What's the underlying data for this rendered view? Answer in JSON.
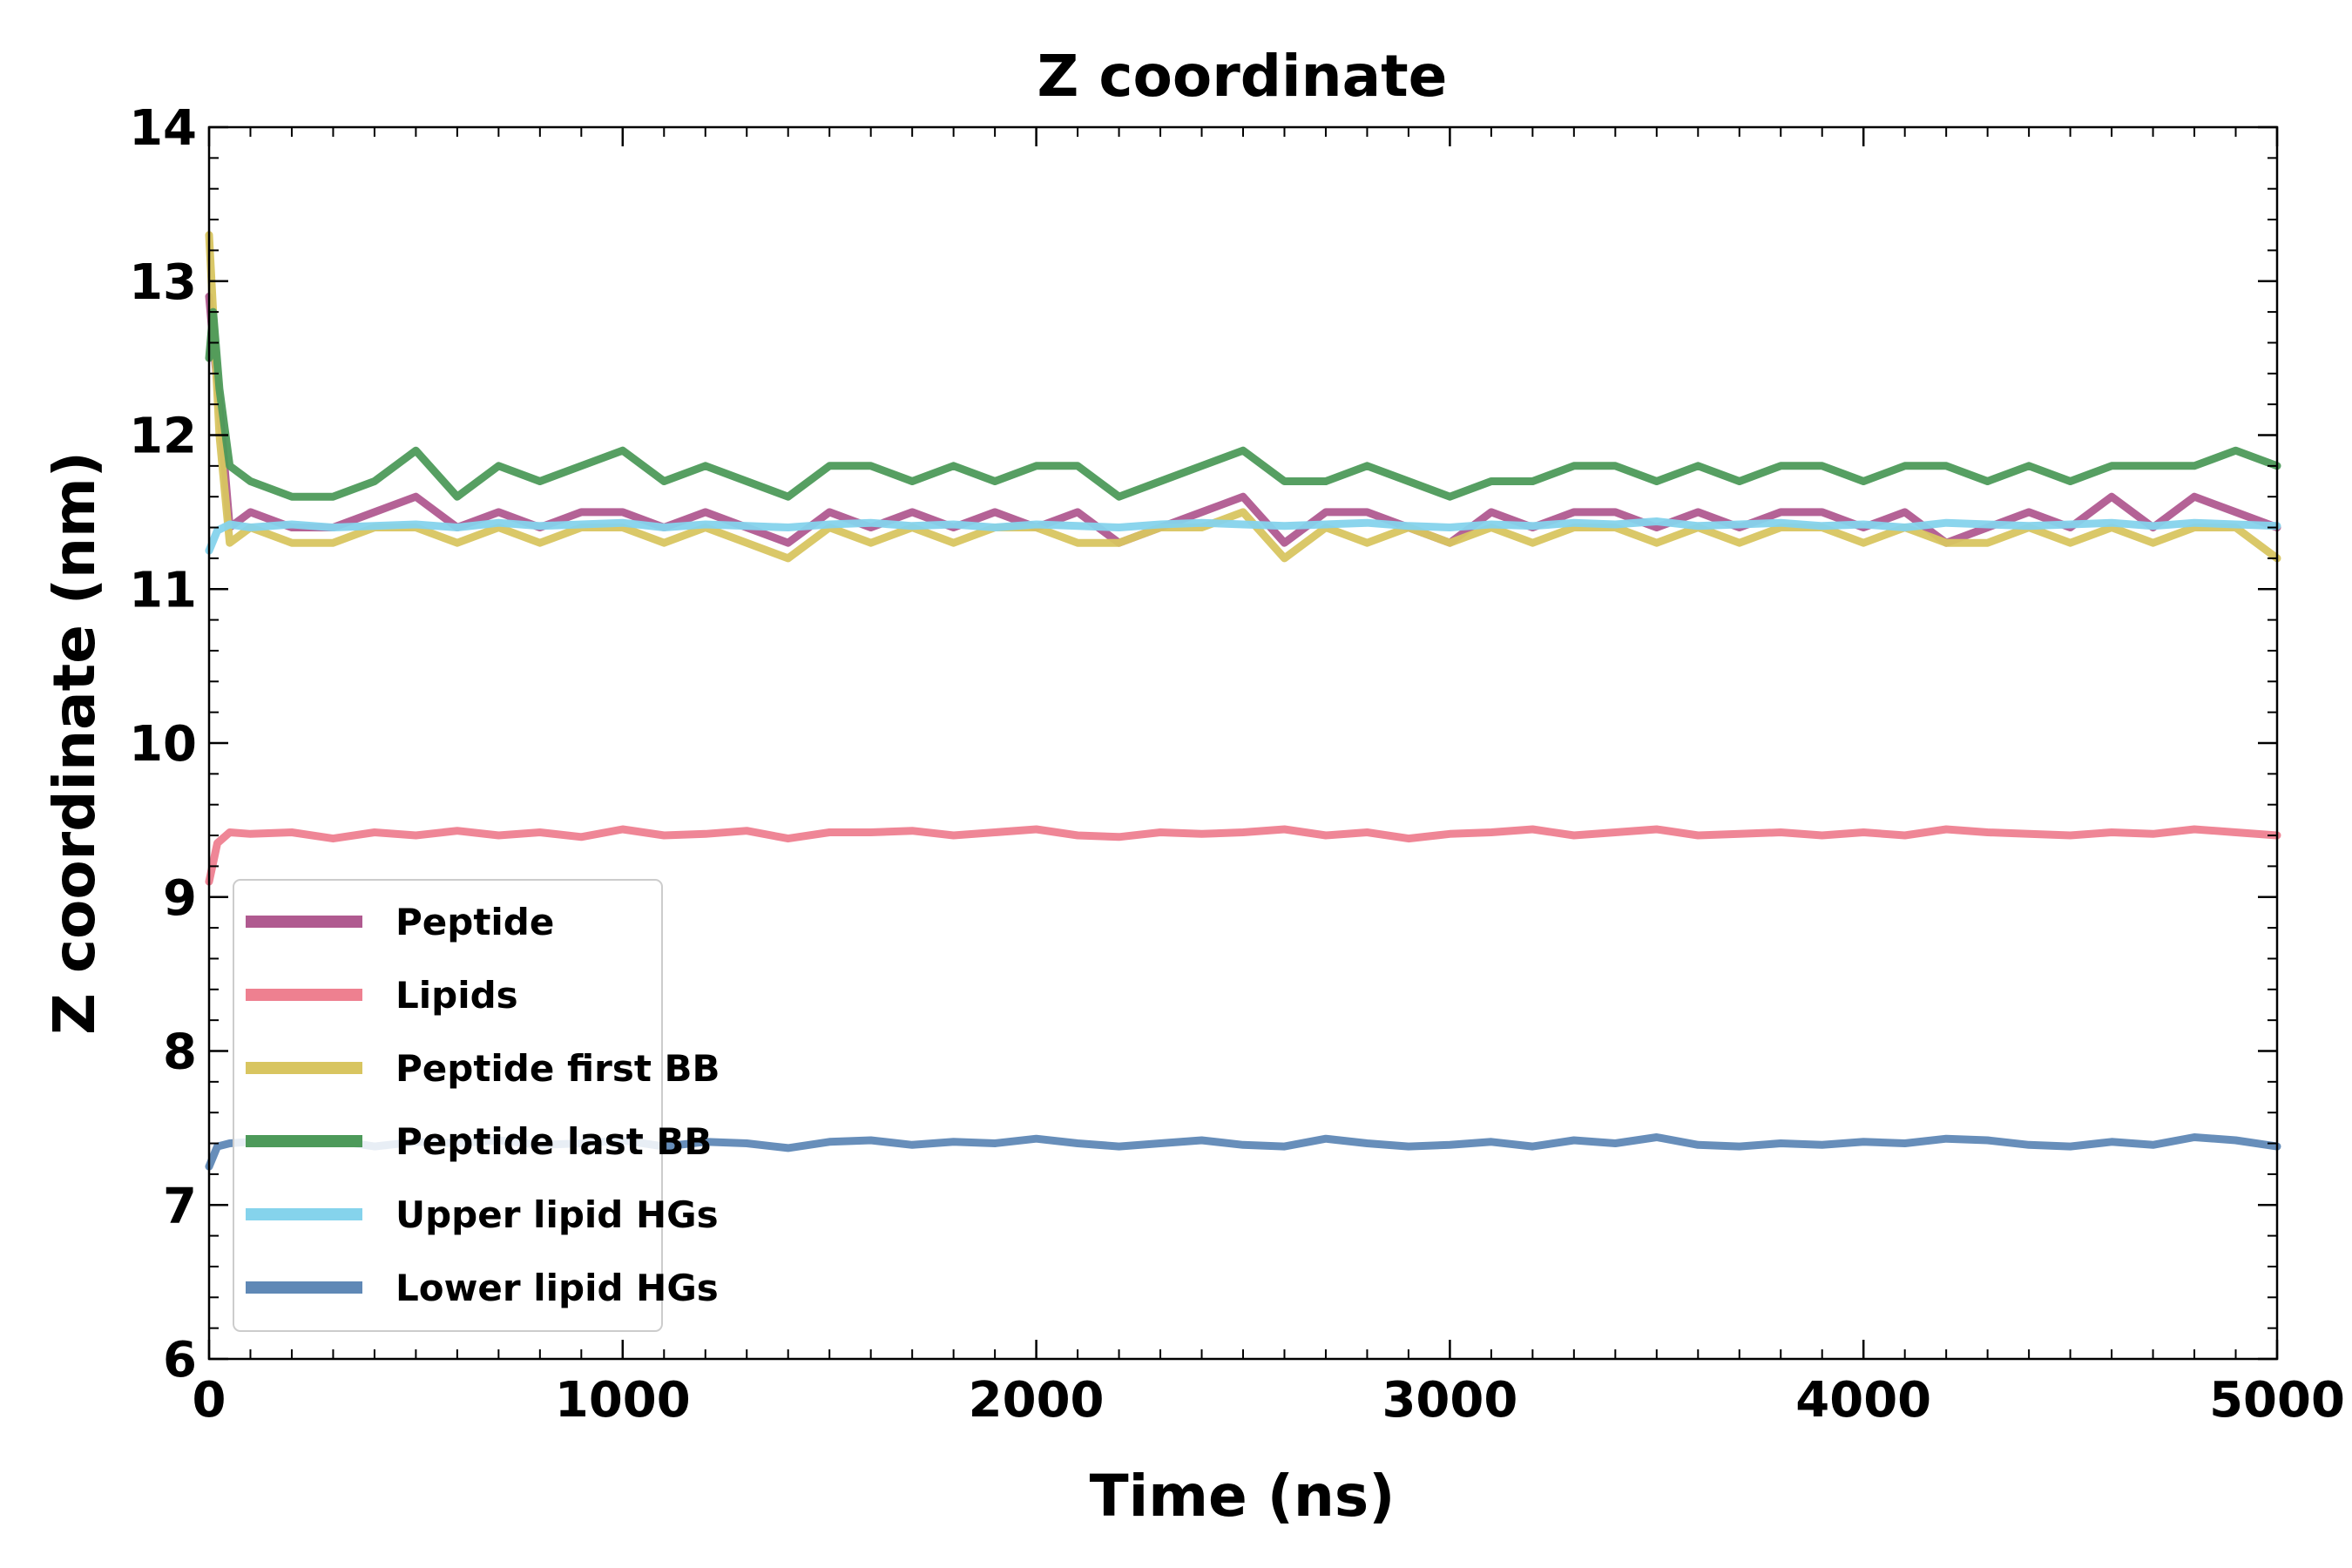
{
  "chart_data": {
    "type": "line",
    "title": "Z coordinate",
    "xlabel": "Time (ns)",
    "ylabel": "Z coordinate (nm)",
    "xlim": [
      0,
      5000
    ],
    "ylim": [
      6,
      14
    ],
    "xticks": [
      0,
      1000,
      2000,
      3000,
      4000,
      5000
    ],
    "yticks": [
      6,
      7,
      8,
      9,
      10,
      11,
      12,
      13,
      14
    ],
    "grid": false,
    "legend_position": "lower-left",
    "series": [
      {
        "name": "Peptide",
        "color": "#b05a90",
        "x": [
          0,
          10,
          25,
          50,
          100,
          200,
          300,
          400,
          500,
          600,
          700,
          800,
          900,
          1000,
          1100,
          1200,
          1300,
          1400,
          1500,
          1600,
          1700,
          1800,
          1900,
          2000,
          2100,
          2200,
          2300,
          2400,
          2500,
          2600,
          2700,
          2800,
          2900,
          3000,
          3100,
          3200,
          3300,
          3400,
          3500,
          3600,
          3700,
          3800,
          3900,
          4000,
          4100,
          4200,
          4300,
          4400,
          4500,
          4600,
          4700,
          4800,
          4900,
          5000
        ],
        "values": [
          12.9,
          12.6,
          12.2,
          11.4,
          11.5,
          11.4,
          11.4,
          11.5,
          11.6,
          11.4,
          11.5,
          11.4,
          11.5,
          11.5,
          11.4,
          11.5,
          11.4,
          11.3,
          11.5,
          11.4,
          11.5,
          11.4,
          11.5,
          11.4,
          11.5,
          11.3,
          11.4,
          11.5,
          11.6,
          11.3,
          11.5,
          11.5,
          11.4,
          11.3,
          11.5,
          11.4,
          11.5,
          11.5,
          11.4,
          11.5,
          11.4,
          11.5,
          11.5,
          11.4,
          11.5,
          11.3,
          11.4,
          11.5,
          11.4,
          11.6,
          11.4,
          11.6,
          11.5,
          11.4
        ]
      },
      {
        "name": "Lipids",
        "color": "#ee8090",
        "x": [
          0,
          20,
          50,
          100,
          200,
          300,
          400,
          500,
          600,
          700,
          800,
          900,
          1000,
          1100,
          1200,
          1300,
          1400,
          1500,
          1600,
          1700,
          1800,
          1900,
          2000,
          2100,
          2200,
          2300,
          2400,
          2500,
          2600,
          2700,
          2800,
          2900,
          3000,
          3100,
          3200,
          3300,
          3400,
          3500,
          3600,
          3700,
          3800,
          3900,
          4000,
          4100,
          4200,
          4300,
          4400,
          4500,
          4600,
          4700,
          4800,
          4900,
          5000
        ],
        "values": [
          9.1,
          9.35,
          9.42,
          9.41,
          9.42,
          9.38,
          9.42,
          9.4,
          9.43,
          9.4,
          9.42,
          9.39,
          9.44,
          9.4,
          9.41,
          9.43,
          9.38,
          9.42,
          9.42,
          9.43,
          9.4,
          9.42,
          9.44,
          9.4,
          9.39,
          9.42,
          9.41,
          9.42,
          9.44,
          9.4,
          9.42,
          9.38,
          9.41,
          9.42,
          9.44,
          9.4,
          9.42,
          9.44,
          9.4,
          9.41,
          9.42,
          9.4,
          9.42,
          9.4,
          9.44,
          9.42,
          9.41,
          9.4,
          9.42,
          9.41,
          9.44,
          9.42,
          9.4
        ]
      },
      {
        "name": "Peptide first BB",
        "color": "#d8c560",
        "x": [
          0,
          10,
          25,
          50,
          100,
          200,
          300,
          400,
          500,
          600,
          700,
          800,
          900,
          1000,
          1100,
          1200,
          1300,
          1400,
          1500,
          1600,
          1700,
          1800,
          1900,
          2000,
          2100,
          2200,
          2300,
          2400,
          2500,
          2600,
          2700,
          2800,
          2900,
          3000,
          3100,
          3200,
          3300,
          3400,
          3500,
          3600,
          3700,
          3800,
          3900,
          4000,
          4100,
          4200,
          4300,
          4400,
          4500,
          4600,
          4700,
          4800,
          4900,
          5000
        ],
        "values": [
          13.3,
          12.8,
          12.0,
          11.3,
          11.4,
          11.3,
          11.3,
          11.4,
          11.4,
          11.3,
          11.4,
          11.3,
          11.4,
          11.4,
          11.3,
          11.4,
          11.3,
          11.2,
          11.4,
          11.3,
          11.4,
          11.3,
          11.4,
          11.4,
          11.3,
          11.3,
          11.4,
          11.4,
          11.5,
          11.2,
          11.4,
          11.3,
          11.4,
          11.3,
          11.4,
          11.3,
          11.4,
          11.4,
          11.3,
          11.4,
          11.3,
          11.4,
          11.4,
          11.3,
          11.4,
          11.3,
          11.3,
          11.4,
          11.3,
          11.4,
          11.3,
          11.4,
          11.4,
          11.2
        ]
      },
      {
        "name": "Peptide last BB",
        "color": "#4d9a5a",
        "x": [
          0,
          10,
          25,
          50,
          100,
          200,
          300,
          400,
          500,
          600,
          700,
          800,
          900,
          1000,
          1100,
          1200,
          1300,
          1400,
          1500,
          1600,
          1700,
          1800,
          1900,
          2000,
          2100,
          2200,
          2300,
          2400,
          2500,
          2600,
          2700,
          2800,
          2900,
          3000,
          3100,
          3200,
          3300,
          3400,
          3500,
          3600,
          3700,
          3800,
          3900,
          4000,
          4100,
          4200,
          4300,
          4400,
          4500,
          4600,
          4700,
          4800,
          4900,
          5000
        ],
        "values": [
          12.5,
          12.8,
          12.3,
          11.8,
          11.7,
          11.6,
          11.6,
          11.7,
          11.9,
          11.6,
          11.8,
          11.7,
          11.8,
          11.9,
          11.7,
          11.8,
          11.7,
          11.6,
          11.8,
          11.8,
          11.7,
          11.8,
          11.7,
          11.8,
          11.8,
          11.6,
          11.7,
          11.8,
          11.9,
          11.7,
          11.7,
          11.8,
          11.7,
          11.6,
          11.7,
          11.7,
          11.8,
          11.8,
          11.7,
          11.8,
          11.7,
          11.8,
          11.8,
          11.7,
          11.8,
          11.8,
          11.7,
          11.8,
          11.7,
          11.8,
          11.8,
          11.8,
          11.9,
          11.8
        ]
      },
      {
        "name": "Upper lipid HGs",
        "color": "#85d3ec",
        "x": [
          0,
          20,
          50,
          100,
          200,
          300,
          400,
          500,
          600,
          700,
          800,
          900,
          1000,
          1100,
          1200,
          1300,
          1400,
          1500,
          1600,
          1700,
          1800,
          1900,
          2000,
          2100,
          2200,
          2300,
          2400,
          2500,
          2600,
          2700,
          2800,
          2900,
          3000,
          3100,
          3200,
          3300,
          3400,
          3500,
          3600,
          3700,
          3800,
          3900,
          4000,
          4100,
          4200,
          4300,
          4400,
          4500,
          4600,
          4700,
          4800,
          4900,
          5000
        ],
        "values": [
          11.25,
          11.38,
          11.42,
          11.4,
          11.42,
          11.4,
          11.41,
          11.42,
          11.4,
          11.43,
          11.41,
          11.42,
          11.43,
          11.4,
          11.42,
          11.41,
          11.4,
          11.42,
          11.43,
          11.41,
          11.42,
          11.4,
          11.42,
          11.41,
          11.4,
          11.42,
          11.43,
          11.42,
          11.41,
          11.42,
          11.43,
          11.41,
          11.4,
          11.42,
          11.41,
          11.43,
          11.42,
          11.44,
          11.41,
          11.42,
          11.43,
          11.41,
          11.42,
          11.4,
          11.43,
          11.42,
          11.41,
          11.42,
          11.43,
          11.41,
          11.43,
          11.42,
          11.41
        ]
      },
      {
        "name": "Lower lipid HGs",
        "color": "#5f88b6",
        "x": [
          0,
          20,
          50,
          100,
          200,
          300,
          400,
          500,
          600,
          700,
          800,
          900,
          1000,
          1100,
          1200,
          1300,
          1400,
          1500,
          1600,
          1700,
          1800,
          1900,
          2000,
          2100,
          2200,
          2300,
          2400,
          2500,
          2600,
          2700,
          2800,
          2900,
          3000,
          3100,
          3200,
          3300,
          3400,
          3500,
          3600,
          3700,
          3800,
          3900,
          4000,
          4100,
          4200,
          4300,
          4400,
          4500,
          4600,
          4700,
          4800,
          4900,
          5000
        ],
        "values": [
          7.25,
          7.38,
          7.4,
          7.41,
          7.4,
          7.42,
          7.38,
          7.41,
          7.4,
          7.42,
          7.39,
          7.4,
          7.42,
          7.38,
          7.41,
          7.4,
          7.37,
          7.41,
          7.42,
          7.39,
          7.41,
          7.4,
          7.43,
          7.4,
          7.38,
          7.4,
          7.42,
          7.39,
          7.38,
          7.43,
          7.4,
          7.38,
          7.39,
          7.41,
          7.38,
          7.42,
          7.4,
          7.44,
          7.39,
          7.38,
          7.4,
          7.39,
          7.41,
          7.4,
          7.43,
          7.42,
          7.39,
          7.38,
          7.41,
          7.39,
          7.44,
          7.42,
          7.38
        ]
      }
    ]
  }
}
